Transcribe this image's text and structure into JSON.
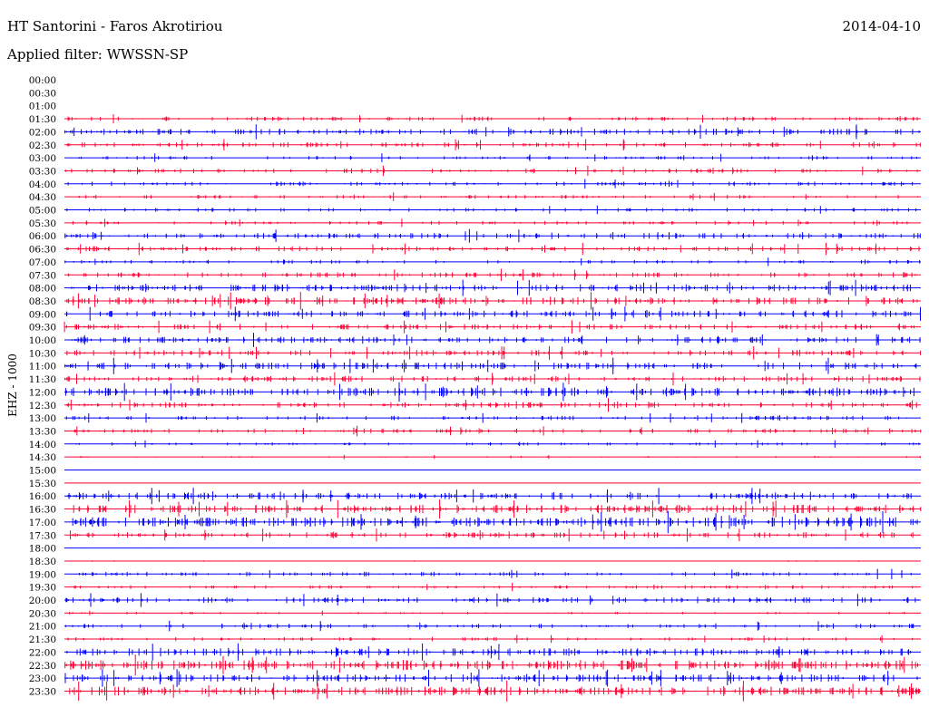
{
  "header": {
    "station": "HT Santorini - Faros Akrotiriou",
    "date": "2014-04-10",
    "filter": "Applied filter: WWSSN-SP"
  },
  "channel_label": "EHZ - 1000",
  "chart_data": {
    "type": "line",
    "title": "HT Santorini - Faros Akrotiriou",
    "subtitle": "Applied filter: WWSSN-SP",
    "ylabel": "EHZ - 1000",
    "xlabel": "",
    "colors": [
      "#0000ff",
      "#ff0033"
    ],
    "grid": false,
    "trace_lines": [
      {
        "time": "00:00",
        "color": "#ff0033",
        "activity": 0
      },
      {
        "time": "00:30",
        "color": "#0000ff",
        "activity": 0
      },
      {
        "time": "01:00",
        "color": "#ff0033",
        "activity": 0
      },
      {
        "time": "01:30",
        "color": "#ff0033",
        "activity": 0.35
      },
      {
        "time": "02:00",
        "color": "#0000ff",
        "activity": 0.5
      },
      {
        "time": "02:30",
        "color": "#ff0033",
        "activity": 0.4
      },
      {
        "time": "03:00",
        "color": "#0000ff",
        "activity": 0.3
      },
      {
        "time": "03:30",
        "color": "#ff0033",
        "activity": 0.35
      },
      {
        "time": "04:00",
        "color": "#0000ff",
        "activity": 0.35
      },
      {
        "time": "04:30",
        "color": "#ff0033",
        "activity": 0.3
      },
      {
        "time": "05:00",
        "color": "#0000ff",
        "activity": 0.3
      },
      {
        "time": "05:30",
        "color": "#ff0033",
        "activity": 0.3
      },
      {
        "time": "06:00",
        "color": "#0000ff",
        "activity": 0.45
      },
      {
        "time": "06:30",
        "color": "#ff0033",
        "activity": 0.4
      },
      {
        "time": "07:00",
        "color": "#0000ff",
        "activity": 0.3
      },
      {
        "time": "07:30",
        "color": "#ff0033",
        "activity": 0.4
      },
      {
        "time": "08:00",
        "color": "#0000ff",
        "activity": 0.55
      },
      {
        "time": "08:30",
        "color": "#ff0033",
        "activity": 0.6
      },
      {
        "time": "09:00",
        "color": "#0000ff",
        "activity": 0.5
      },
      {
        "time": "09:30",
        "color": "#ff0033",
        "activity": 0.45
      },
      {
        "time": "10:00",
        "color": "#0000ff",
        "activity": 0.5
      },
      {
        "time": "10:30",
        "color": "#ff0033",
        "activity": 0.45
      },
      {
        "time": "11:00",
        "color": "#0000ff",
        "activity": 0.55
      },
      {
        "time": "11:30",
        "color": "#ff0033",
        "activity": 0.45
      },
      {
        "time": "12:00",
        "color": "#0000ff",
        "activity": 0.7
      },
      {
        "time": "12:30",
        "color": "#ff0033",
        "activity": 0.45
      },
      {
        "time": "13:00",
        "color": "#0000ff",
        "activity": 0.35
      },
      {
        "time": "13:30",
        "color": "#ff0033",
        "activity": 0.35
      },
      {
        "time": "14:00",
        "color": "#0000ff",
        "activity": 0.25
      },
      {
        "time": "14:30",
        "color": "#ff0033",
        "activity": 0.15
      },
      {
        "time": "15:00",
        "color": "#0000ff",
        "activity": 0.05
      },
      {
        "time": "15:30",
        "color": "#ff0033",
        "activity": 0.05
      },
      {
        "time": "16:00",
        "color": "#0000ff",
        "activity": 0.55
      },
      {
        "time": "16:30",
        "color": "#ff0033",
        "activity": 0.65
      },
      {
        "time": "17:00",
        "color": "#0000ff",
        "activity": 0.75
      },
      {
        "time": "17:30",
        "color": "#ff0033",
        "activity": 0.45
      },
      {
        "time": "18:00",
        "color": "#0000ff",
        "activity": 0.05
      },
      {
        "time": "18:30",
        "color": "#ff0033",
        "activity": 0.1
      },
      {
        "time": "19:00",
        "color": "#0000ff",
        "activity": 0.35
      },
      {
        "time": "19:30",
        "color": "#ff0033",
        "activity": 0.3
      },
      {
        "time": "20:00",
        "color": "#0000ff",
        "activity": 0.45
      },
      {
        "time": "20:30",
        "color": "#ff0033",
        "activity": 0.2
      },
      {
        "time": "21:00",
        "color": "#0000ff",
        "activity": 0.35
      },
      {
        "time": "21:30",
        "color": "#ff0033",
        "activity": 0.3
      },
      {
        "time": "22:00",
        "color": "#0000ff",
        "activity": 0.6
      },
      {
        "time": "22:30",
        "color": "#ff0033",
        "activity": 0.75
      },
      {
        "time": "23:00",
        "color": "#0000ff",
        "activity": 0.6
      },
      {
        "time": "23:30",
        "color": "#ff0033",
        "activity": 0.7
      }
    ]
  }
}
